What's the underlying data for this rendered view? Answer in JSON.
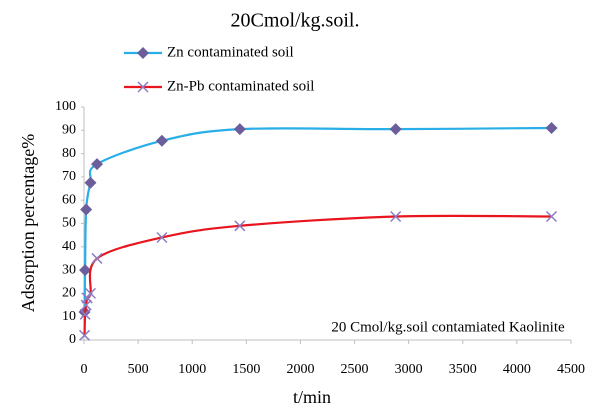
{
  "chart_data": {
    "type": "line",
    "title": "20Cmol/kg.soil.",
    "annotation": "20 Cmol/kg.soil  contamiated Kaolinite",
    "x_label": "t/min",
    "y_label": "Adsorption percentage%",
    "xlim": [
      0,
      4500
    ],
    "xticks": [
      0,
      500,
      1000,
      1500,
      2000,
      2500,
      3000,
      3500,
      4000,
      4500
    ],
    "ylim": [
      0,
      100
    ],
    "yticks": [
      0,
      10,
      20,
      30,
      40,
      50,
      60,
      70,
      80,
      90,
      100
    ],
    "grid": false,
    "smooth": true,
    "series": [
      {
        "name": "Zn contaminated soil",
        "color": "#29aee8",
        "marker": "diamond",
        "marker_color": "#6b5e9b",
        "x": [
          5,
          10,
          20,
          60,
          120,
          720,
          1440,
          2880,
          4320
        ],
        "values": [
          12,
          30,
          56,
          67.5,
          75.5,
          85.5,
          90.5,
          90.5,
          91
        ]
      },
      {
        "name": "Zn-Pb contaminated soil",
        "color": "#e8141e",
        "marker": "x",
        "marker_color": "#8e7cc3",
        "x": [
          5,
          10,
          20,
          30,
          60,
          120,
          720,
          1440,
          2880,
          4320
        ],
        "values": [
          2,
          11,
          15,
          18,
          20,
          35,
          44,
          49,
          53,
          53
        ]
      }
    ]
  }
}
